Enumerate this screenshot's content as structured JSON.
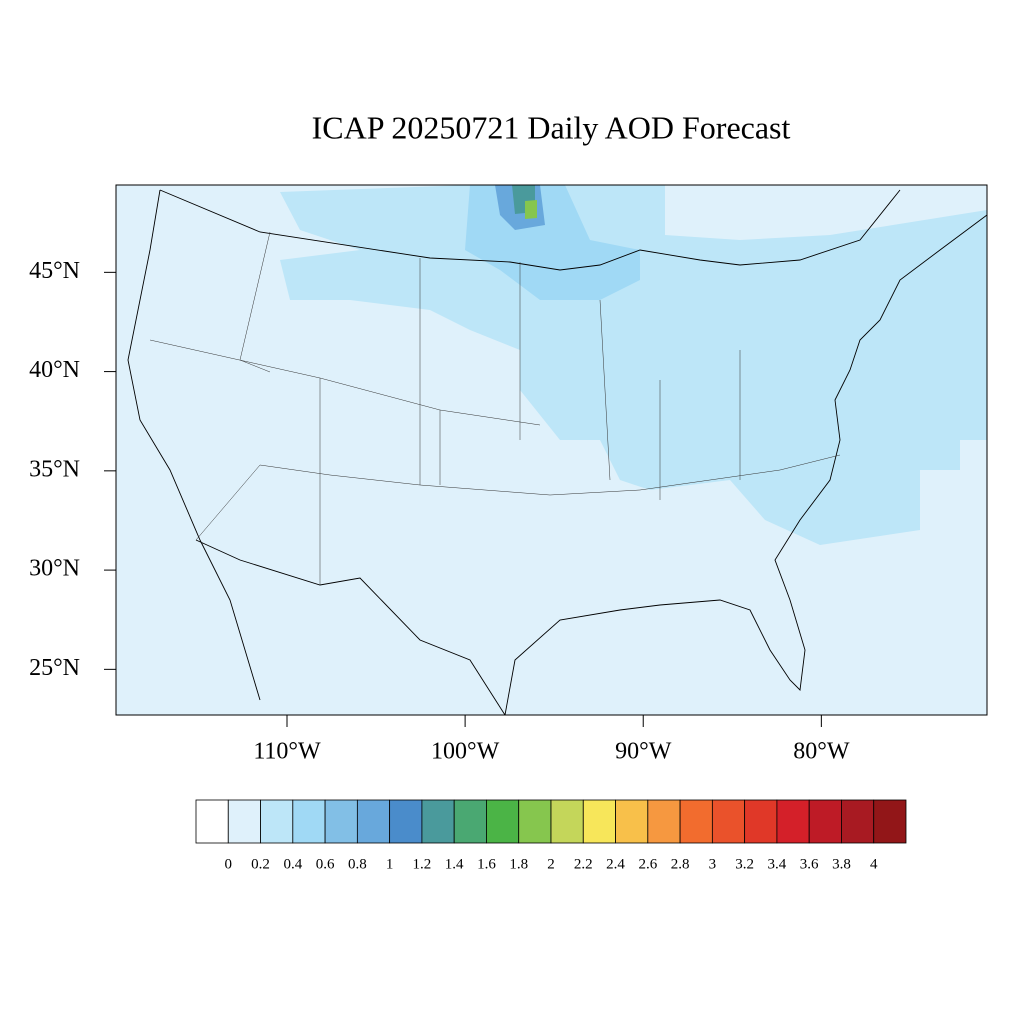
{
  "chart_data": {
    "type": "map",
    "title": "ICAP 20250721 Daily AOD Forecast",
    "xlim": [
      -119.6,
      -70.7
    ],
    "ylim": [
      22.7,
      49.4
    ],
    "xticks": [
      {
        "value": -110,
        "label": "110°W"
      },
      {
        "value": -100,
        "label": "100°W"
      },
      {
        "value": -90,
        "label": "90°W"
      },
      {
        "value": -80,
        "label": "80°W"
      }
    ],
    "yticks": [
      {
        "value": 25,
        "label": "25°N"
      },
      {
        "value": 30,
        "label": "30°N"
      },
      {
        "value": 35,
        "label": "35°N"
      },
      {
        "value": 40,
        "label": "40°N"
      },
      {
        "value": 45,
        "label": "45°N"
      }
    ],
    "colorbar": {
      "levels": [
        0,
        0.2,
        0.4,
        0.6,
        0.8,
        1,
        1.2,
        1.4,
        1.6,
        1.8,
        2,
        2.2,
        2.4,
        2.6,
        2.8,
        3,
        3.2,
        3.4,
        3.6,
        3.8,
        4
      ],
      "colors": [
        "#ffffff",
        "#dff1fb",
        "#bde6f8",
        "#a0d9f5",
        "#82bfe6",
        "#68a8dc",
        "#4a8ccb",
        "#4a9a9c",
        "#4aa872",
        "#4bb446",
        "#86c64e",
        "#c4d65a",
        "#f7e65a",
        "#f8c04a",
        "#f69840",
        "#f26c2e",
        "#ea522b",
        "#e03828",
        "#d42029",
        "#be1b26",
        "#a81a22",
        "#921618"
      ]
    }
  }
}
